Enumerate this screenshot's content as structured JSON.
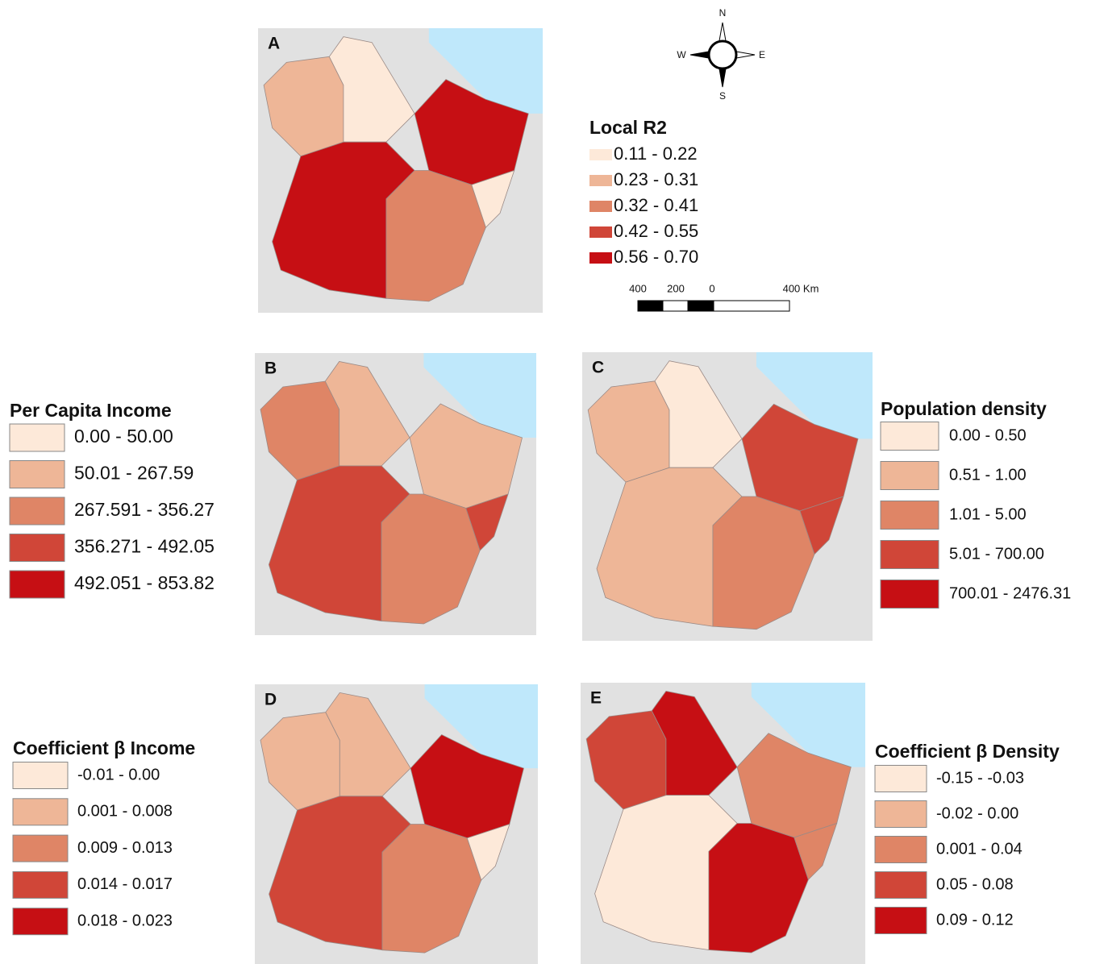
{
  "panels": [
    {
      "letter": "A",
      "legend": {
        "title": "Local R2",
        "labels": [
          "0.11 - 0.22",
          "0.23 - 0.31",
          "0.32 - 0.41",
          "0.42 - 0.55",
          "0.56 - 0.70"
        ],
        "colors": [
          "#fde9d9",
          "#eeb697",
          "#df8566",
          "#d04638",
          "#c60f14"
        ]
      }
    },
    {
      "letter": "B",
      "legend": {
        "title": "Per Capita Income",
        "labels": [
          "0.00 - 50.00",
          "50.01 - 267.59",
          "267.591 - 356.27",
          "356.271 - 492.05",
          "492.051 - 853.82"
        ],
        "colors": [
          "#fde9d9",
          "#eeb697",
          "#df8566",
          "#d04638",
          "#c60f14"
        ]
      }
    },
    {
      "letter": "C",
      "legend": {
        "title": "Population density",
        "labels": [
          "0.00 - 0.50",
          "0.51 - 1.00",
          "1.01 - 5.00",
          "5.01 - 700.00",
          "700.01 - 2476.31"
        ],
        "colors": [
          "#fde9d9",
          "#eeb697",
          "#df8566",
          "#d04638",
          "#c60f14"
        ]
      }
    },
    {
      "letter": "D",
      "legend": {
        "title": "Coefficient β Income",
        "labels": [
          "-0.01 - 0.00",
          "0.001 - 0.008",
          "0.009 - 0.013",
          "0.014 - 0.017",
          "0.018 - 0.023"
        ],
        "colors": [
          "#fde9d9",
          "#eeb697",
          "#df8566",
          "#d04638",
          "#c60f14"
        ]
      }
    },
    {
      "letter": "E",
      "legend": {
        "title": "Coefficient β Density",
        "labels": [
          "-0.15 - -0.03",
          "-0.02 - 0.00",
          "0.001 - 0.04",
          "0.05 - 0.08",
          "0.09 - 0.12"
        ],
        "colors": [
          "#fde9d9",
          "#eeb697",
          "#df8566",
          "#d04638",
          "#c60f14"
        ]
      }
    }
  ],
  "compass": {
    "north": "N",
    "south": "S",
    "east": "E",
    "west": "W"
  },
  "scale_bar": {
    "labels": [
      "400",
      "200",
      "0",
      "400 Km"
    ]
  }
}
